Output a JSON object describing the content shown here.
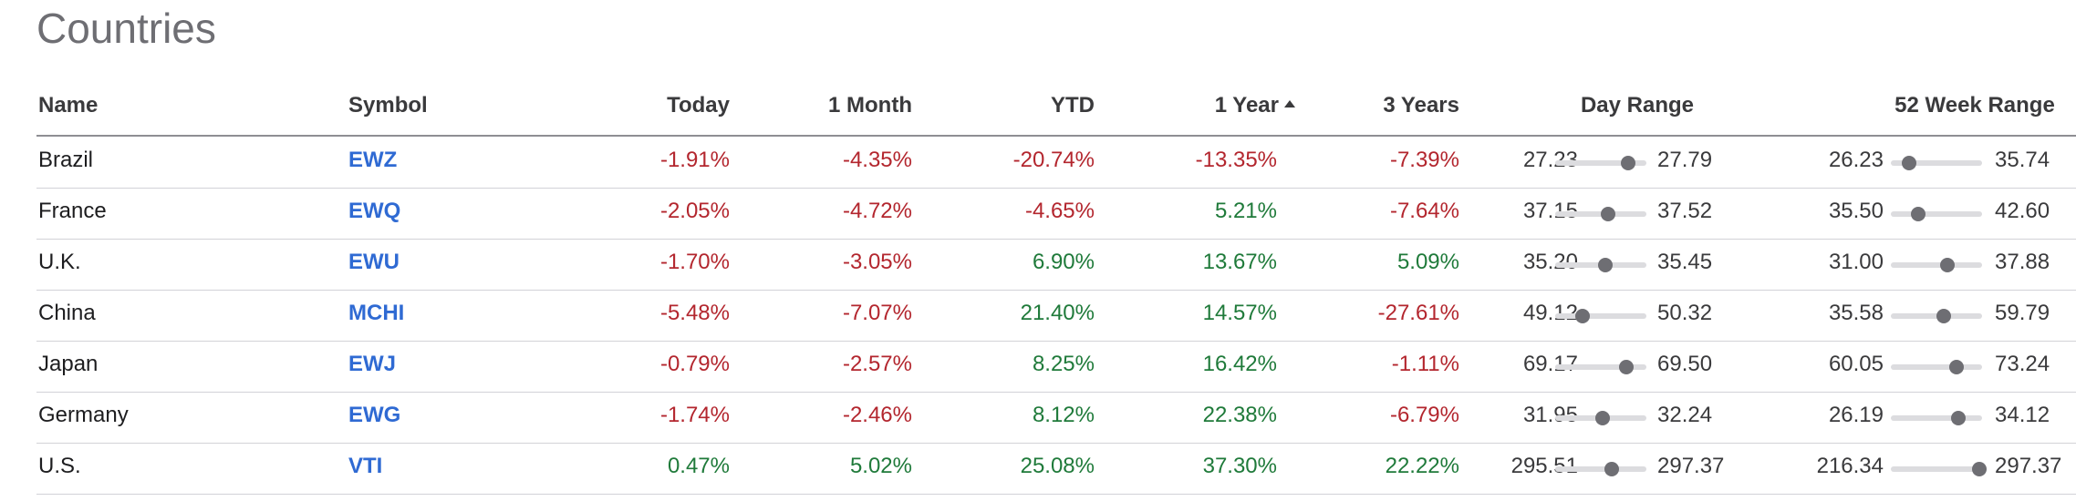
{
  "section_title": "Countries",
  "columns": {
    "name": "Name",
    "symbol": "Symbol",
    "today": "Today",
    "month": "1 Month",
    "ytd": "YTD",
    "year": "1 Year",
    "three_years": "3 Years",
    "day_range": "Day Range",
    "week52_range": "52 Week Range"
  },
  "sorted_column": "1 Year",
  "colors": {
    "negative": "#b3262e",
    "positive": "#1f7a3a",
    "symbol_link": "#2f6ad3"
  },
  "rows": [
    {
      "name": "Brazil",
      "symbol": "EWZ",
      "today": "-1.91%",
      "month": "-4.35%",
      "ytd": "-20.74%",
      "year": "-13.35%",
      "three_years": "-7.39%",
      "day_low": "27.23",
      "day_high": "27.79",
      "day_pos": 0.8,
      "wk_low": "26.23",
      "wk_high": "35.74",
      "wk_pos": 0.2
    },
    {
      "name": "France",
      "symbol": "EWQ",
      "today": "-2.05%",
      "month": "-4.72%",
      "ytd": "-4.65%",
      "year": "5.21%",
      "three_years": "-7.64%",
      "day_low": "37.15",
      "day_high": "37.52",
      "day_pos": 0.58,
      "wk_low": "35.50",
      "wk_high": "42.60",
      "wk_pos": 0.3
    },
    {
      "name": "U.K.",
      "symbol": "EWU",
      "today": "-1.70%",
      "month": "-3.05%",
      "ytd": "6.90%",
      "year": "13.67%",
      "three_years": "5.09%",
      "day_low": "35.20",
      "day_high": "35.45",
      "day_pos": 0.55,
      "wk_low": "31.00",
      "wk_high": "37.88",
      "wk_pos": 0.62
    },
    {
      "name": "China",
      "symbol": "MCHI",
      "today": "-5.48%",
      "month": "-7.07%",
      "ytd": "21.40%",
      "year": "14.57%",
      "three_years": "-27.61%",
      "day_low": "49.12",
      "day_high": "50.32",
      "day_pos": 0.3,
      "wk_low": "35.58",
      "wk_high": "59.79",
      "wk_pos": 0.58
    },
    {
      "name": "Japan",
      "symbol": "EWJ",
      "today": "-0.79%",
      "month": "-2.57%",
      "ytd": "8.25%",
      "year": "16.42%",
      "three_years": "-1.11%",
      "day_low": "69.17",
      "day_high": "69.50",
      "day_pos": 0.78,
      "wk_low": "60.05",
      "wk_high": "73.24",
      "wk_pos": 0.72
    },
    {
      "name": "Germany",
      "symbol": "EWG",
      "today": "-1.74%",
      "month": "-2.46%",
      "ytd": "8.12%",
      "year": "22.38%",
      "three_years": "-6.79%",
      "day_low": "31.95",
      "day_high": "32.24",
      "day_pos": 0.52,
      "wk_low": "26.19",
      "wk_high": "34.12",
      "wk_pos": 0.74
    },
    {
      "name": "U.S.",
      "symbol": "VTI",
      "today": "0.47%",
      "month": "5.02%",
      "ytd": "25.08%",
      "year": "37.30%",
      "three_years": "22.22%",
      "day_low": "295.51",
      "day_high": "297.37",
      "day_pos": 0.62,
      "wk_low": "216.34",
      "wk_high": "297.37",
      "wk_pos": 0.97
    }
  ]
}
